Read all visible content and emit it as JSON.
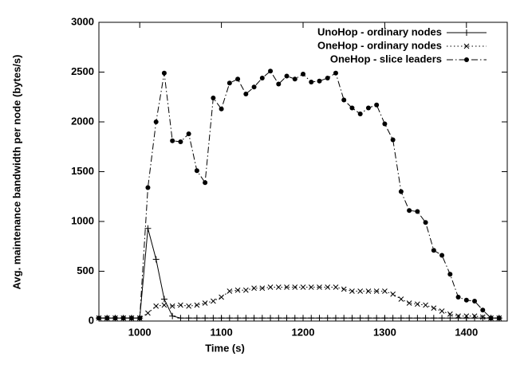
{
  "chart_data": {
    "type": "line",
    "x_label": "Time (s)",
    "y_label": "Avg. maintenance bandwidth per node (bytes/s)",
    "x": [
      950,
      960,
      970,
      980,
      990,
      1000,
      1010,
      1020,
      1030,
      1040,
      1050,
      1060,
      1070,
      1080,
      1090,
      1100,
      1110,
      1120,
      1130,
      1140,
      1150,
      1160,
      1170,
      1180,
      1190,
      1200,
      1210,
      1220,
      1230,
      1240,
      1250,
      1260,
      1270,
      1280,
      1290,
      1300,
      1310,
      1320,
      1330,
      1340,
      1350,
      1360,
      1370,
      1380,
      1390,
      1400,
      1410,
      1420,
      1430,
      1440
    ],
    "series": [
      {
        "name": "UnoHop - ordinary nodes",
        "color": "#000000",
        "dash": "solid",
        "marker": "plus",
        "values": [
          30,
          30,
          30,
          30,
          30,
          30,
          930,
          620,
          220,
          50,
          30,
          30,
          30,
          30,
          30,
          30,
          30,
          30,
          30,
          30,
          30,
          30,
          30,
          30,
          30,
          30,
          30,
          30,
          30,
          30,
          30,
          30,
          30,
          30,
          30,
          30,
          30,
          30,
          30,
          30,
          30,
          30,
          30,
          30,
          30,
          30,
          30,
          30,
          30,
          30
        ]
      },
      {
        "name": "OneHop - ordinary nodes",
        "color": "#000000",
        "dash": "dotted",
        "marker": "cross",
        "values": [
          30,
          30,
          30,
          30,
          30,
          30,
          80,
          150,
          160,
          150,
          160,
          150,
          160,
          180,
          200,
          240,
          300,
          310,
          310,
          330,
          330,
          340,
          340,
          340,
          340,
          340,
          340,
          340,
          340,
          340,
          320,
          300,
          300,
          300,
          300,
          300,
          270,
          220,
          180,
          170,
          160,
          130,
          100,
          70,
          50,
          50,
          50,
          40,
          30,
          30
        ]
      },
      {
        "name": "OneHop - slice leaders",
        "color": "#000000",
        "dash": "dashdot",
        "marker": "dot",
        "values": [
          30,
          30,
          30,
          30,
          30,
          30,
          1340,
          2000,
          2490,
          1810,
          1800,
          1880,
          1510,
          1390,
          2240,
          2130,
          2390,
          2430,
          2280,
          2350,
          2440,
          2510,
          2380,
          2460,
          2430,
          2480,
          2400,
          2410,
          2440,
          2490,
          2220,
          2140,
          2080,
          2140,
          2170,
          1980,
          1820,
          1300,
          1110,
          1100,
          990,
          710,
          660,
          470,
          240,
          210,
          200,
          110,
          30,
          30
        ]
      }
    ],
    "xlim": [
      950,
      1450
    ],
    "xticks": [
      1000,
      1100,
      1200,
      1300,
      1400
    ],
    "ylim": [
      0,
      3000
    ],
    "yticks": [
      0,
      500,
      1000,
      1500,
      2000,
      2500,
      3000
    ],
    "legend": "top-right"
  }
}
